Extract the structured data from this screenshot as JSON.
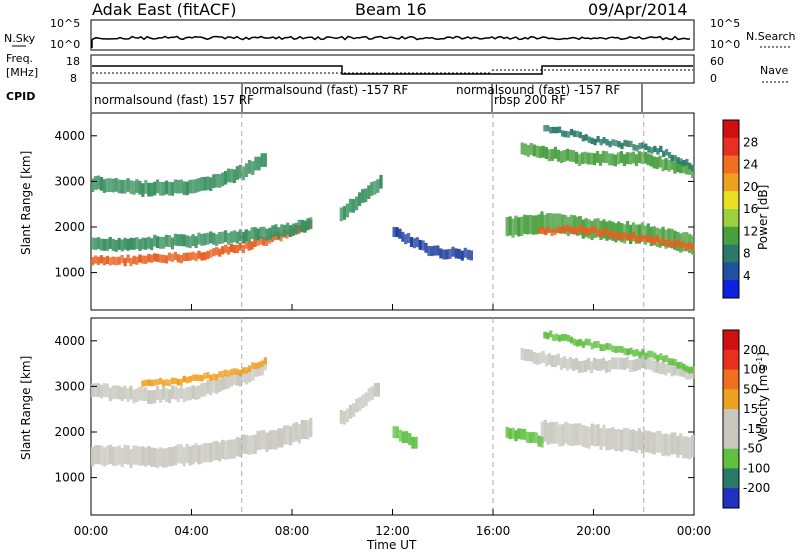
{
  "header": {
    "station": "Adak East (fitACF)",
    "beam": "Beam 16",
    "date": "09/Apr/2014"
  },
  "top_panels": {
    "nsky_label": "N.Sky",
    "nsky_ticks": [
      "10^5",
      "10^0"
    ],
    "nsearch_label": "N.Search",
    "nsearch_ticks": [
      "10^5",
      "10^0"
    ],
    "freq_label": "Freq.",
    "freq_unit": "[MHz]",
    "freq_ticks": [
      "18",
      "8"
    ],
    "nave_label": "Nave",
    "nave_ticks": [
      "60",
      "0"
    ],
    "cpid_label": "CPID",
    "cpid_segments": [
      {
        "label": "normalsound (fast) 157 RF",
        "start": 0,
        "end": 6
      },
      {
        "label": "normalsound (fast) -157 RF",
        "start": 6,
        "end": 16
      },
      {
        "label": "normalsound (fast) -157 RF",
        "start": 16,
        "end": 22
      },
      {
        "label": "rbsp 200 RF",
        "start": 16,
        "end": 18
      }
    ]
  },
  "chart_data": [
    {
      "type": "heatmap",
      "name": "power",
      "ylabel": "Slant Range [km]",
      "x_range_hours": [
        0,
        24
      ],
      "ylim": [
        180,
        4500
      ],
      "yticks": [
        1000,
        2000,
        3000,
        4000
      ],
      "colorbar_label": "Power [dB]",
      "colorbar_ticks": [
        4,
        8,
        12,
        16,
        20,
        24,
        28
      ],
      "colorbar_colors": [
        "#1020e0",
        "#2050a0",
        "#2a7a6a",
        "#4aa040",
        "#9cd040",
        "#e8e020",
        "#f0a020",
        "#f07020",
        "#e83020",
        "#d01010"
      ],
      "bands": [
        {
          "t": [
            0,
            2,
            4,
            6,
            7.5,
            8.8
          ],
          "r": [
            1250,
            1280,
            1350,
            1550,
            1800,
            2050
          ],
          "w": 180,
          "color": "#e86020"
        },
        {
          "t": [
            0,
            2,
            4,
            6,
            8,
            8.8
          ],
          "r": [
            1600,
            1650,
            1700,
            1800,
            1950,
            2100
          ],
          "w": 260,
          "color": "#3a9060"
        },
        {
          "t": [
            0,
            2,
            4,
            6,
            7
          ],
          "r": [
            2950,
            2850,
            2850,
            3200,
            3500
          ],
          "w": 300,
          "color": "#3a9060"
        },
        {
          "t": [
            9.9,
            11.6
          ],
          "r": [
            2300,
            3000
          ],
          "w": 300,
          "color": "#3a9060"
        },
        {
          "t": [
            12,
            13.5,
            15.2
          ],
          "r": [
            1900,
            1450,
            1400
          ],
          "w": 220,
          "color": "#2040a0"
        },
        {
          "t": [
            16.5,
            18,
            20,
            22,
            24
          ],
          "r": [
            2000,
            2100,
            1950,
            1850,
            1600
          ],
          "w": 420,
          "color": "#4aa040"
        },
        {
          "t": [
            17.8,
            19,
            20,
            22,
            24
          ],
          "r": [
            1900,
            1950,
            1900,
            1750,
            1550
          ],
          "w": 150,
          "color": "#e86020"
        },
        {
          "t": [
            17.1,
            19.5,
            22,
            24
          ],
          "r": [
            3700,
            3500,
            3500,
            3200
          ],
          "w": 260,
          "color": "#4aa040"
        },
        {
          "t": [
            18,
            20,
            22.5,
            24
          ],
          "r": [
            4200,
            3900,
            3700,
            3300
          ],
          "w": 140,
          "color": "#2a7a6a"
        }
      ]
    },
    {
      "type": "heatmap",
      "name": "velocity",
      "ylabel": "Slant Range [km]",
      "xlabel": "Time UT",
      "x_range_hours": [
        0,
        24
      ],
      "xticks": [
        "00:00",
        "04:00",
        "08:00",
        "12:00",
        "16:00",
        "20:00",
        "00:00"
      ],
      "ylim": [
        180,
        4500
      ],
      "yticks": [
        1000,
        2000,
        3000,
        4000
      ],
      "colorbar_label": "Velocity [m s",
      "colorbar_exp": "-1",
      "colorbar_ticks": [
        "200",
        "100",
        "50",
        "15",
        "-15",
        "-50",
        "-100",
        "-200"
      ],
      "colorbar_colors": [
        "#2030c0",
        "#2a7a6a",
        "#60c040",
        "#c8c8c0",
        "#c8c8c0",
        "#f0a020",
        "#f07020",
        "#e83020",
        "#d01010"
      ],
      "bands": [
        {
          "t": [
            0,
            2,
            4,
            6,
            8,
            8.8
          ],
          "r": [
            1500,
            1450,
            1500,
            1700,
            1950,
            2100
          ],
          "w": 420,
          "color": "#c8c8c0"
        },
        {
          "t": [
            0,
            2,
            4,
            6,
            7
          ],
          "r": [
            2900,
            2800,
            2850,
            3200,
            3500
          ],
          "w": 300,
          "color": "#c8c8c0"
        },
        {
          "t": [
            2,
            4,
            6,
            7
          ],
          "r": [
            3050,
            3150,
            3350,
            3550
          ],
          "w": 140,
          "color": "#f0a020"
        },
        {
          "t": [
            9.9,
            11.5
          ],
          "r": [
            2300,
            3000
          ],
          "w": 300,
          "color": "#c8c8c0"
        },
        {
          "t": [
            12,
            13
          ],
          "r": [
            2000,
            1700
          ],
          "w": 260,
          "color": "#60c040"
        },
        {
          "t": [
            17.9,
            20,
            22,
            24
          ],
          "r": [
            2000,
            1900,
            1800,
            1650
          ],
          "w": 480,
          "color": "#c8c8c0"
        },
        {
          "t": [
            16.5,
            18
          ],
          "r": [
            2000,
            1800
          ],
          "w": 240,
          "color": "#60c040"
        },
        {
          "t": [
            17.1,
            19.5,
            22,
            24
          ],
          "r": [
            3700,
            3450,
            3500,
            3250
          ],
          "w": 260,
          "color": "#c8c8c0"
        },
        {
          "t": [
            18,
            20,
            22.5,
            24
          ],
          "r": [
            4150,
            3900,
            3650,
            3300
          ],
          "w": 150,
          "color": "#60c040"
        }
      ]
    }
  ]
}
